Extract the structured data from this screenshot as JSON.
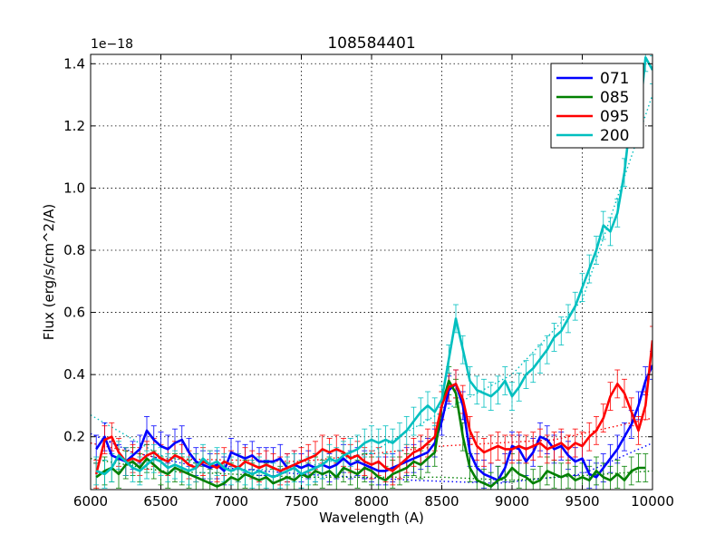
{
  "chart_data": {
    "type": "line",
    "title": "108584401",
    "xlabel": "Wavelength (A)",
    "ylabel": "Flux (erg/s/cm^2/A)",
    "offset_text": "1e−18",
    "xlim": [
      6000,
      10000
    ],
    "ylim": [
      0.03,
      1.43
    ],
    "xticks": [
      6000,
      6500,
      7000,
      7500,
      8000,
      8500,
      9000,
      9500,
      10000
    ],
    "yticks": [
      0.2,
      0.4,
      0.6,
      0.8,
      1.0,
      1.2,
      1.4
    ],
    "ytick_labels": [
      "0.2",
      "0.4",
      "0.6",
      "0.8",
      "1.0",
      "1.2",
      "1.4"
    ],
    "grid": true,
    "legend_position": "top-right",
    "series": [
      {
        "name": "071",
        "color": "#0000ff",
        "x": [
          6040,
          6100,
          6150,
          6200,
          6250,
          6300,
          6350,
          6400,
          6450,
          6500,
          6550,
          6600,
          6650,
          6700,
          6750,
          6800,
          6850,
          6900,
          6950,
          7000,
          7050,
          7100,
          7150,
          7200,
          7250,
          7300,
          7350,
          7400,
          7450,
          7500,
          7550,
          7600,
          7650,
          7700,
          7750,
          7800,
          7850,
          7900,
          7950,
          8000,
          8050,
          8100,
          8150,
          8200,
          8250,
          8300,
          8350,
          8400,
          8450,
          8500,
          8550,
          8600,
          8650,
          8700,
          8750,
          8800,
          8850,
          8900,
          8950,
          9000,
          9050,
          9100,
          9150,
          9200,
          9250,
          9300,
          9350,
          9400,
          9450,
          9500,
          9550,
          9600,
          9650,
          9700,
          9750,
          9800,
          9850,
          9900,
          9950,
          10000
        ],
        "y": [
          0.16,
          0.2,
          0.14,
          0.13,
          0.12,
          0.14,
          0.16,
          0.22,
          0.19,
          0.17,
          0.16,
          0.18,
          0.19,
          0.15,
          0.12,
          0.11,
          0.1,
          0.11,
          0.09,
          0.15,
          0.14,
          0.13,
          0.14,
          0.12,
          0.12,
          0.12,
          0.13,
          0.1,
          0.11,
          0.1,
          0.11,
          0.1,
          0.11,
          0.1,
          0.11,
          0.13,
          0.11,
          0.12,
          0.11,
          0.1,
          0.09,
          0.09,
          0.1,
          0.11,
          0.12,
          0.13,
          0.14,
          0.15,
          0.18,
          0.25,
          0.35,
          0.37,
          0.3,
          0.15,
          0.1,
          0.08,
          0.07,
          0.06,
          0.1,
          0.17,
          0.16,
          0.12,
          0.15,
          0.2,
          0.19,
          0.16,
          0.17,
          0.14,
          0.12,
          0.13,
          0.08,
          0.07,
          0.1,
          0.13,
          0.16,
          0.2,
          0.24,
          0.3,
          0.38,
          0.43
        ],
        "err": 0.045,
        "trend": [
          [
            6000,
            0.21
          ],
          [
            6300,
            0.15
          ],
          [
            6700,
            0.11
          ],
          [
            7500,
            0.08
          ],
          [
            8300,
            0.06
          ],
          [
            8900,
            0.05
          ],
          [
            9500,
            0.08
          ],
          [
            10000,
            0.18
          ]
        ]
      },
      {
        "name": "085",
        "color": "#008000",
        "x": [
          6040,
          6100,
          6150,
          6200,
          6250,
          6300,
          6350,
          6400,
          6450,
          6500,
          6550,
          6600,
          6650,
          6700,
          6750,
          6800,
          6850,
          6900,
          6950,
          7000,
          7050,
          7100,
          7150,
          7200,
          7250,
          7300,
          7350,
          7400,
          7450,
          7500,
          7550,
          7600,
          7650,
          7700,
          7750,
          7800,
          7850,
          7900,
          7950,
          8000,
          8050,
          8100,
          8150,
          8200,
          8250,
          8300,
          8350,
          8400,
          8450,
          8500,
          8550,
          8600,
          8650,
          8700,
          8750,
          8800,
          8850,
          8900,
          8950,
          9000,
          9050,
          9100,
          9150,
          9200,
          9250,
          9300,
          9350,
          9400,
          9450,
          9500,
          9550,
          9600,
          9650,
          9700,
          9750,
          9800,
          9850,
          9900,
          9950
        ],
        "y": [
          0.07,
          0.09,
          0.1,
          0.08,
          0.11,
          0.12,
          0.1,
          0.13,
          0.11,
          0.09,
          0.08,
          0.1,
          0.09,
          0.08,
          0.07,
          0.06,
          0.05,
          0.04,
          0.05,
          0.07,
          0.06,
          0.08,
          0.07,
          0.06,
          0.07,
          0.05,
          0.06,
          0.07,
          0.06,
          0.08,
          0.07,
          0.09,
          0.08,
          0.09,
          0.07,
          0.1,
          0.09,
          0.08,
          0.1,
          0.09,
          0.07,
          0.06,
          0.08,
          0.09,
          0.1,
          0.12,
          0.11,
          0.13,
          0.15,
          0.3,
          0.38,
          0.34,
          0.2,
          0.1,
          0.06,
          0.05,
          0.04,
          0.06,
          0.07,
          0.1,
          0.08,
          0.07,
          0.05,
          0.06,
          0.09,
          0.08,
          0.07,
          0.08,
          0.06,
          0.07,
          0.06,
          0.09,
          0.07,
          0.06,
          0.08,
          0.06,
          0.09,
          0.1,
          0.1
        ],
        "err": 0.045,
        "trend": [
          [
            6000,
            0.13
          ],
          [
            6500,
            0.09
          ],
          [
            7500,
            0.07
          ],
          [
            8500,
            0.07
          ],
          [
            9000,
            0.06
          ],
          [
            10000,
            0.09
          ]
        ]
      },
      {
        "name": "095",
        "color": "#ff0000",
        "x": [
          6040,
          6100,
          6150,
          6200,
          6250,
          6300,
          6350,
          6400,
          6450,
          6500,
          6550,
          6600,
          6650,
          6700,
          6750,
          6800,
          6850,
          6900,
          6950,
          7000,
          7050,
          7100,
          7150,
          7200,
          7250,
          7300,
          7350,
          7400,
          7450,
          7500,
          7550,
          7600,
          7650,
          7700,
          7750,
          7800,
          7850,
          7900,
          7950,
          8000,
          8050,
          8100,
          8150,
          8200,
          8250,
          8300,
          8350,
          8400,
          8450,
          8500,
          8550,
          8600,
          8650,
          8700,
          8750,
          8800,
          8850,
          8900,
          8950,
          9000,
          9050,
          9100,
          9150,
          9200,
          9250,
          9300,
          9350,
          9400,
          9450,
          9500,
          9550,
          9600,
          9650,
          9700,
          9750,
          9800,
          9850,
          9900,
          9950,
          10000
        ],
        "y": [
          0.08,
          0.19,
          0.2,
          0.15,
          0.12,
          0.13,
          0.12,
          0.14,
          0.15,
          0.13,
          0.12,
          0.14,
          0.13,
          0.11,
          0.1,
          0.12,
          0.11,
          0.1,
          0.12,
          0.11,
          0.1,
          0.12,
          0.11,
          0.1,
          0.11,
          0.1,
          0.09,
          0.1,
          0.11,
          0.12,
          0.13,
          0.14,
          0.16,
          0.15,
          0.16,
          0.15,
          0.13,
          0.14,
          0.12,
          0.11,
          0.12,
          0.1,
          0.09,
          0.11,
          0.13,
          0.15,
          0.16,
          0.18,
          0.2,
          0.3,
          0.36,
          0.37,
          0.32,
          0.22,
          0.17,
          0.15,
          0.16,
          0.17,
          0.16,
          0.16,
          0.17,
          0.16,
          0.17,
          0.18,
          0.16,
          0.17,
          0.18,
          0.16,
          0.18,
          0.17,
          0.2,
          0.22,
          0.26,
          0.33,
          0.37,
          0.34,
          0.28,
          0.22,
          0.3,
          0.51
        ],
        "err": 0.045,
        "trend": [
          [
            6000,
            0.18
          ],
          [
            6500,
            0.13
          ],
          [
            7500,
            0.12
          ],
          [
            8500,
            0.17
          ],
          [
            9300,
            0.19
          ],
          [
            10000,
            0.26
          ]
        ]
      },
      {
        "name": "200",
        "color": "#00bfbf",
        "x": [
          6040,
          6100,
          6150,
          6200,
          6250,
          6300,
          6350,
          6400,
          6450,
          6500,
          6550,
          6600,
          6650,
          6700,
          6750,
          6800,
          6850,
          6900,
          6950,
          7000,
          7050,
          7100,
          7150,
          7200,
          7250,
          7300,
          7350,
          7400,
          7450,
          7500,
          7550,
          7600,
          7650,
          7700,
          7750,
          7800,
          7850,
          7900,
          7950,
          8000,
          8050,
          8100,
          8150,
          8200,
          8250,
          8300,
          8350,
          8400,
          8450,
          8500,
          8550,
          8600,
          8650,
          8700,
          8750,
          8800,
          8850,
          8900,
          8950,
          9000,
          9050,
          9100,
          9150,
          9200,
          9250,
          9300,
          9350,
          9400,
          9450,
          9500,
          9550,
          9600,
          9650,
          9700,
          9750,
          9800,
          9850,
          9900,
          9950,
          10000
        ],
        "y": [
          0.09,
          0.08,
          0.1,
          0.14,
          0.12,
          0.1,
          0.09,
          0.11,
          0.13,
          0.12,
          0.1,
          0.11,
          0.1,
          0.09,
          0.1,
          0.13,
          0.11,
          0.12,
          0.1,
          0.09,
          0.1,
          0.09,
          0.08,
          0.09,
          0.08,
          0.07,
          0.08,
          0.09,
          0.1,
          0.08,
          0.09,
          0.1,
          0.11,
          0.13,
          0.12,
          0.14,
          0.15,
          0.16,
          0.18,
          0.19,
          0.18,
          0.19,
          0.18,
          0.2,
          0.22,
          0.25,
          0.28,
          0.3,
          0.28,
          0.32,
          0.45,
          0.58,
          0.48,
          0.38,
          0.35,
          0.34,
          0.33,
          0.35,
          0.38,
          0.33,
          0.36,
          0.4,
          0.42,
          0.45,
          0.48,
          0.52,
          0.54,
          0.58,
          0.62,
          0.68,
          0.74,
          0.8,
          0.88,
          0.86,
          0.92,
          1.05,
          1.25,
          1.2,
          1.42,
          1.38
        ],
        "err": 0.045,
        "trend": [
          [
            6000,
            0.27
          ],
          [
            6500,
            0.14
          ],
          [
            7000,
            0.09
          ],
          [
            7500,
            0.1
          ],
          [
            8000,
            0.15
          ],
          [
            8500,
            0.28
          ],
          [
            9000,
            0.4
          ],
          [
            9500,
            0.64
          ],
          [
            10000,
            1.3
          ]
        ]
      }
    ]
  }
}
